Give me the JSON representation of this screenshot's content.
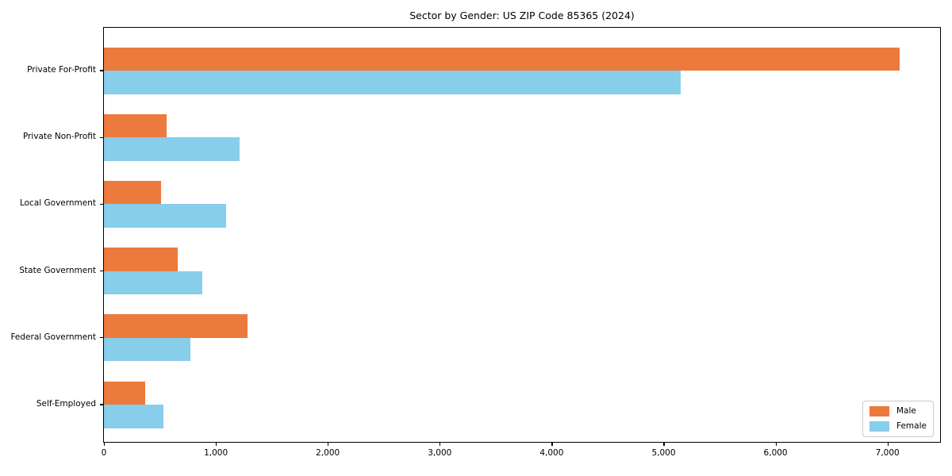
{
  "chart_data": {
    "type": "bar",
    "orientation": "horizontal",
    "title": "Sector by Gender: US ZIP Code 85365 (2024)",
    "categories": [
      "Private For-Profit",
      "Private Non-Profit",
      "Local Government",
      "State Government",
      "Federal Government",
      "Self-Employed"
    ],
    "series": [
      {
        "name": "Male",
        "color": "#ec7a3d",
        "values": [
          7110,
          560,
          510,
          660,
          1280,
          370
        ]
      },
      {
        "name": "Female",
        "color": "#87ceeb",
        "values": [
          5150,
          1210,
          1090,
          880,
          770,
          530
        ]
      }
    ],
    "xlabel": "",
    "ylabel": "",
    "xlim": [
      0,
      7470
    ],
    "xticks": {
      "values": [
        0,
        1000,
        2000,
        3000,
        4000,
        5000,
        6000,
        7000
      ],
      "labels": [
        "0",
        "1,000",
        "2,000",
        "3,000",
        "4,000",
        "5,000",
        "6,000",
        "7,000"
      ]
    },
    "grid": false,
    "legend": {
      "position": "lower right"
    }
  },
  "colors": {
    "background": "#ffffff",
    "axis": "#000000",
    "legend_border": "#cccccc"
  }
}
